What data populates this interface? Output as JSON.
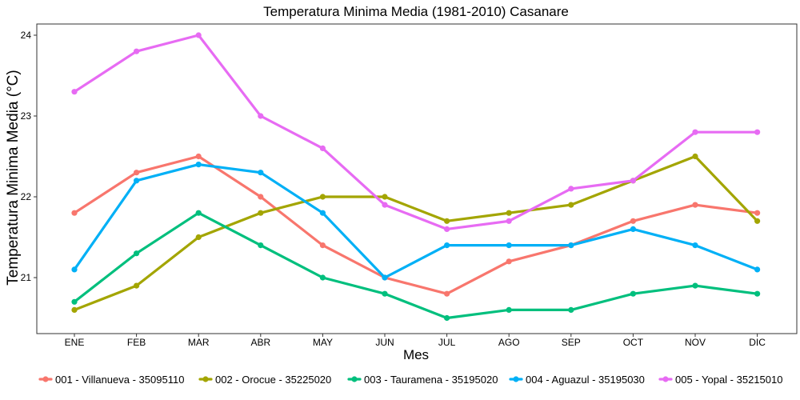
{
  "chart_data": {
    "type": "line",
    "title": "Temperatura Minima Media (1981-2010)  Casanare",
    "xlabel": "Mes",
    "ylabel": "Temperatura Minima Media  (°C)",
    "categories": [
      "ENE",
      "FEB",
      "MAR",
      "ABR",
      "MAY",
      "JUN",
      "JUL",
      "AGO",
      "SEP",
      "OCT",
      "NOV",
      "DIC"
    ],
    "yticks": [
      21,
      22,
      23,
      24
    ],
    "ylim": [
      20.45,
      24.05
    ],
    "grid": false,
    "legend_position": "bottom",
    "series": [
      {
        "name": "001 - Villanueva - 35095110",
        "color": "#F8766D",
        "values": [
          21.8,
          22.3,
          22.5,
          22.0,
          21.4,
          21.0,
          20.8,
          21.2,
          21.4,
          21.7,
          21.9,
          21.8
        ]
      },
      {
        "name": "002 - Orocue - 35225020",
        "color": "#A3A500",
        "values": [
          20.6,
          20.9,
          21.5,
          21.8,
          22.0,
          22.0,
          21.7,
          21.8,
          21.9,
          22.2,
          22.5,
          21.7
        ]
      },
      {
        "name": "003 - Tauramena - 35195020",
        "color": "#00BF7D",
        "values": [
          20.7,
          21.3,
          21.8,
          21.4,
          21.0,
          20.8,
          20.5,
          20.6,
          20.6,
          20.8,
          20.9,
          20.8
        ]
      },
      {
        "name": "004 - Aguazul - 35195030",
        "color": "#00B0F6",
        "values": [
          21.1,
          22.2,
          22.4,
          22.3,
          21.8,
          21.0,
          21.4,
          21.4,
          21.4,
          21.6,
          21.4,
          21.1
        ]
      },
      {
        "name": "005 - Yopal - 35215010",
        "color": "#E76BF3",
        "values": [
          23.3,
          23.8,
          24.0,
          23.0,
          22.6,
          21.9,
          21.6,
          21.7,
          22.1,
          22.2,
          22.8,
          22.8
        ]
      }
    ]
  }
}
